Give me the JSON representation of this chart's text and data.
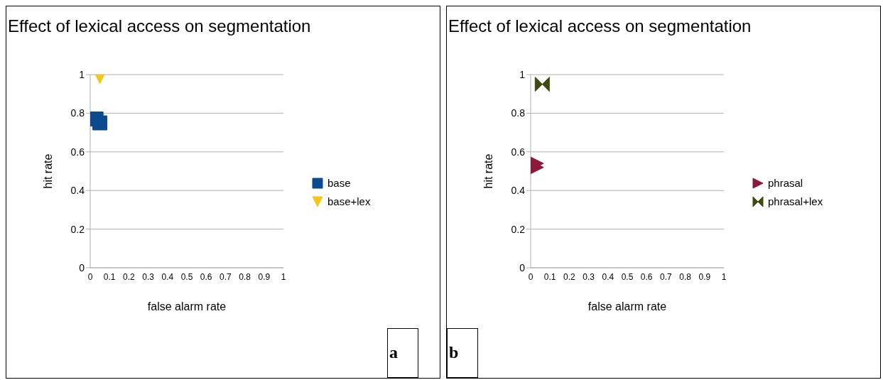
{
  "chart_data": [
    {
      "type": "scatter",
      "title": "Effect of lexical access on segmentation",
      "xlabel": "false alarm rate",
      "ylabel": "hit rate",
      "xlim": [
        0,
        1
      ],
      "xticks": [
        0,
        0.1,
        0.2,
        0.3,
        0.4,
        0.5,
        0.6,
        0.7,
        0.8,
        0.9,
        1
      ],
      "ylim": [
        0,
        1
      ],
      "yticks": [
        0,
        0.2,
        0.4,
        0.6,
        0.8,
        1
      ],
      "grid": "y",
      "legend": "right",
      "annotations": [
        "a"
      ],
      "series": [
        {
          "name": "base",
          "color": "#0b4a8f",
          "marker": "square",
          "x": [
            0.03,
            0.05
          ],
          "values": [
            0.77,
            0.75
          ]
        },
        {
          "name": "base+lex",
          "color": "#f5c518",
          "marker": "triangle",
          "x": [
            0.05
          ],
          "values": [
            0.99
          ]
        }
      ]
    },
    {
      "type": "scatter",
      "title": "Effect of lexical access on segmentation",
      "xlabel": "false alarm rate",
      "ylabel": "hit rate",
      "xlim": [
        0,
        1
      ],
      "xticks": [
        0,
        0.1,
        0.2,
        0.3,
        0.4,
        0.5,
        0.6,
        0.7,
        0.8,
        0.9,
        1
      ],
      "ylim": [
        0,
        1
      ],
      "yticks": [
        0,
        0.2,
        0.4,
        0.6,
        0.8,
        1
      ],
      "grid": "y",
      "legend": "right",
      "annotations": [
        "b"
      ],
      "series": [
        {
          "name": "phrasal",
          "color": "#8b1a3a",
          "marker": "triangle",
          "x": [
            0.03,
            0.03
          ],
          "values": [
            0.54,
            0.52
          ]
        },
        {
          "name": "phrasal+lex",
          "color": "#3f4a10",
          "marker": "diamond",
          "x": [
            0.06
          ],
          "values": [
            0.95
          ]
        }
      ]
    }
  ]
}
